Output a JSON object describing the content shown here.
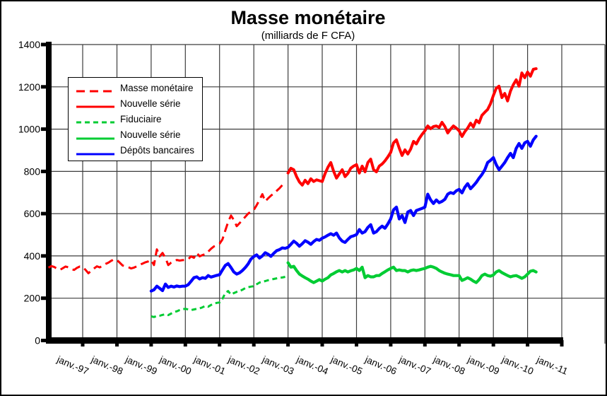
{
  "chart_data": {
    "type": "line",
    "title": "Masse monétaire",
    "subtitle": "(milliards de F CFA)",
    "grid": true,
    "legend_position": "inside-top-left",
    "y_axis": {
      "min": 0,
      "max": 1400,
      "step": 200,
      "ticks": [
        0,
        200,
        400,
        600,
        800,
        1000,
        1200,
        1400
      ]
    },
    "x_axis": {
      "labels": [
        "janv.-97",
        "janv.-98",
        "janv.-99",
        "janv.-00",
        "janv.-01",
        "janv.-02",
        "janv.-03",
        "janv.-04",
        "janv.-05",
        "janv.-06",
        "janv.-07",
        "janv.-08",
        "janv.-09",
        "janv.-10",
        "janv.-11"
      ],
      "tick_month_indices": [
        12,
        24,
        36,
        48,
        60,
        72,
        84,
        96,
        108,
        120,
        132,
        144,
        156,
        168,
        180
      ]
    },
    "series": [
      {
        "name": "Masse monétaire",
        "color": "#ff0000",
        "style": "dash-long",
        "width": 3,
        "start_month": 0,
        "values": [
          345,
          352,
          348,
          340,
          334,
          342,
          350,
          346,
          338,
          334,
          344,
          350,
          347,
          334,
          318,
          330,
          341,
          351,
          346,
          354,
          362,
          368,
          377,
          384,
          381,
          368,
          355,
          351,
          347,
          341,
          345,
          351,
          358,
          364,
          370,
          374,
          381,
          357,
          431,
          398,
          414,
          391,
          357,
          368,
          375,
          381,
          378,
          380,
          381,
          384,
          398,
          391,
          414,
          398,
          404,
          408,
          420,
          434,
          445,
          451,
          458,
          478,
          520,
          560,
          591,
          570,
          541,
          555,
          570,
          585,
          600,
          610,
          618,
          640,
          665,
          692,
          658,
          672,
          685,
          695,
          708,
          720,
          735,
          748
        ]
      },
      {
        "name": "Nouvelle série",
        "color": "#ff0000",
        "style": "solid",
        "width": 4,
        "start_month": 84,
        "values": [
          792,
          815,
          808,
          775,
          750,
          735,
          758,
          742,
          765,
          752,
          760,
          756,
          752,
          790,
          820,
          842,
          800,
          768,
          788,
          808,
          775,
          790,
          815,
          825,
          832,
          792,
          825,
          798,
          842,
          858,
          808,
          798,
          825,
          835,
          850,
          868,
          890,
          935,
          949,
          910,
          875,
          902,
          882,
          905,
          942,
          930,
          955,
          975,
          992,
          1015,
          1002,
          1012,
          1015,
          1008,
          1032,
          1012,
          982,
          1000,
          1015,
          1005,
          992,
          965,
          988,
          1005,
          1028,
          1010,
          1042,
          1030,
          1065,
          1080,
          1093,
          1120,
          1159,
          1193,
          1203,
          1149,
          1169,
          1133,
          1180,
          1210,
          1233,
          1203,
          1266,
          1243,
          1270,
          1250,
          1283,
          1286
        ]
      },
      {
        "name": "Fiduciaire",
        "color": "#00cc33",
        "style": "dash",
        "width": 3,
        "start_month": 36,
        "values": [
          114,
          111,
          116,
          117,
          121,
          124,
          120,
          127,
          134,
          138,
          144,
          148,
          150,
          147,
          144,
          147,
          150,
          152,
          157,
          164,
          160,
          168,
          174,
          178,
          180,
          197,
          224,
          234,
          217,
          224,
          230,
          234,
          240,
          248,
          252,
          255,
          257,
          266,
          274,
          278,
          281,
          285,
          288,
          291,
          294,
          297,
          298,
          301
        ]
      },
      {
        "name": "Nouvelle série",
        "color": "#00cc33",
        "style": "solid",
        "width": 4.2,
        "start_month": 84,
        "values": [
          368,
          347,
          351,
          331,
          314,
          305,
          297,
          290,
          281,
          274,
          281,
          288,
          281,
          290,
          297,
          310,
          317,
          325,
          331,
          324,
          331,
          324,
          330,
          334,
          341,
          331,
          347,
          297,
          307,
          301,
          301,
          307,
          307,
          317,
          325,
          334,
          341,
          347,
          331,
          334,
          331,
          331,
          324,
          331,
          334,
          331,
          334,
          338,
          341,
          347,
          351,
          347,
          341,
          331,
          324,
          318,
          314,
          311,
          307,
          307,
          307,
          284,
          290,
          297,
          290,
          281,
          274,
          288,
          307,
          314,
          307,
          304,
          310,
          324,
          331,
          321,
          314,
          307,
          301,
          305,
          307,
          301,
          294,
          301,
          314,
          328,
          331,
          324
        ]
      },
      {
        "name": "Dépôts bancaires",
        "color": "#0000ff",
        "style": "solid",
        "width": 4.2,
        "start_month": 36,
        "values": [
          234,
          240,
          257,
          247,
          236,
          267,
          251,
          257,
          253,
          258,
          255,
          257,
          257,
          264,
          280,
          297,
          301,
          291,
          297,
          294,
          307,
          300,
          304,
          308,
          311,
          334,
          355,
          364,
          345,
          324,
          314,
          320,
          331,
          345,
          362,
          385,
          397,
          405,
          390,
          400,
          415,
          408,
          398,
          412,
          425,
          430,
          438,
          436,
          441,
          455,
          470,
          460,
          446,
          458,
          472,
          465,
          455,
          468,
          478,
          474,
          484,
          490,
          498,
          505,
          498,
          508,
          485,
          470,
          464,
          478,
          491,
          495,
          501,
          525,
          508,
          515,
          535,
          548,
          508,
          515,
          530,
          541,
          531,
          551,
          575,
          618,
          631,
          575,
          591,
          558,
          608,
          615,
          591,
          615,
          620,
          625,
          631,
          692,
          665,
          648,
          665,
          652,
          658,
          668,
          692,
          700,
          695,
          708,
          715,
          698,
          725,
          742,
          718,
          732,
          748,
          768,
          785,
          808,
          842,
          852,
          865,
          832,
          808,
          825,
          842,
          865,
          885,
          865,
          909,
          932,
          909,
          935,
          942,
          919,
          949,
          966
        ]
      }
    ]
  }
}
